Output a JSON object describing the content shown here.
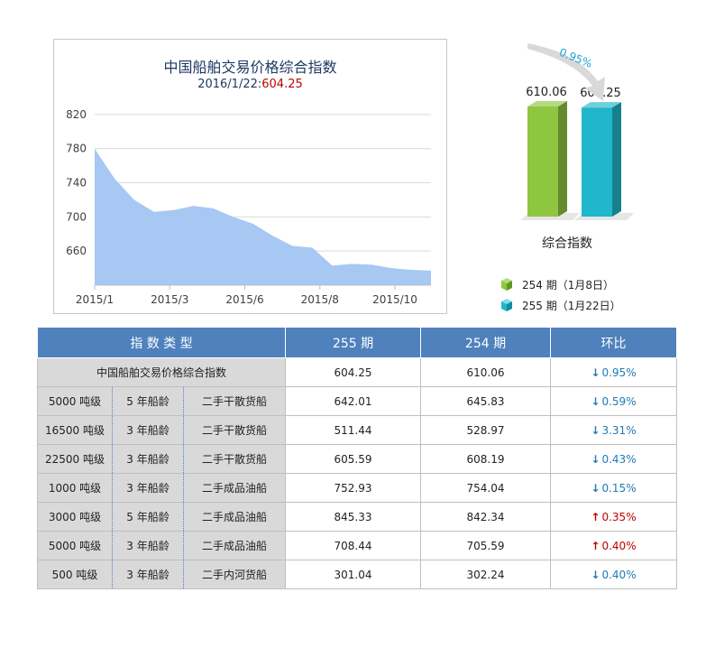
{
  "area_chart": {
    "title": "中国船舶交易价格综合指数",
    "subtitle_date": "2016/1/22:",
    "subtitle_value": "604.25",
    "fill_color": "#a6c8f2",
    "y_ticks": [
      "820",
      "780",
      "740",
      "700",
      "660"
    ],
    "x_ticks": [
      "2015/1",
      "2015/3",
      "2015/6",
      "2015/8",
      "2015/10"
    ]
  },
  "chart_data": [
    {
      "type": "area",
      "x_index": [
        0,
        1,
        2,
        3,
        4,
        5,
        6,
        7,
        8,
        9,
        10,
        11,
        12,
        13,
        14,
        15,
        16,
        17
      ],
      "values": [
        780,
        745,
        720,
        706,
        708,
        713,
        710,
        700,
        692,
        678,
        666,
        664,
        643,
        645,
        644,
        640,
        638,
        637
      ],
      "ylim": [
        620,
        840
      ],
      "grid": true
    },
    {
      "type": "bar",
      "categories": [
        "254 期（1月8日）",
        "255 期（1月22日）"
      ],
      "values": [
        610.06,
        604.25
      ],
      "value_labels": [
        "610.06",
        "604.25"
      ],
      "change_label": "0.95%",
      "xlabel": "综合指数",
      "colors": [
        "#8ec63f",
        "#1fb7c9"
      ]
    }
  ],
  "table": {
    "headers": [
      "指 数 类 型",
      "255 期",
      "254 期",
      "环比"
    ],
    "rows": [
      {
        "type": "中国船舶交易价格综合指数",
        "tonnage": "",
        "age": "",
        "kind": "",
        "p255": "604.25",
        "p254": "610.06",
        "dir": "down",
        "arrow": "↓",
        "change": "0.95%"
      },
      {
        "type": "",
        "tonnage": "5000 吨级",
        "age": "5 年船龄",
        "kind": "二手干散货船",
        "p255": "642.01",
        "p254": "645.83",
        "dir": "down",
        "arrow": "↓",
        "change": "0.59%"
      },
      {
        "type": "",
        "tonnage": "16500 吨级",
        "age": "3 年船龄",
        "kind": "二手干散货船",
        "p255": "511.44",
        "p254": "528.97",
        "dir": "down",
        "arrow": "↓",
        "change": "3.31%"
      },
      {
        "type": "",
        "tonnage": "22500 吨级",
        "age": "3 年船龄",
        "kind": "二手干散货船",
        "p255": "605.59",
        "p254": "608.19",
        "dir": "down",
        "arrow": "↓",
        "change": "0.43%"
      },
      {
        "type": "",
        "tonnage": "1000 吨级",
        "age": "3 年船龄",
        "kind": "二手成品油船",
        "p255": "752.93",
        "p254": "754.04",
        "dir": "down",
        "arrow": "↓",
        "change": "0.15%"
      },
      {
        "type": "",
        "tonnage": "3000 吨级",
        "age": "5 年船龄",
        "kind": "二手成品油船",
        "p255": "845.33",
        "p254": "842.34",
        "dir": "up",
        "arrow": "↑",
        "change": "0.35%"
      },
      {
        "type": "",
        "tonnage": "5000 吨级",
        "age": "3 年船龄",
        "kind": "二手成品油船",
        "p255": "708.44",
        "p254": "705.59",
        "dir": "up",
        "arrow": "↑",
        "change": "0.40%"
      },
      {
        "type": "",
        "tonnage": "500 吨级",
        "age": "3 年船龄",
        "kind": "二手内河货船",
        "p255": "301.04",
        "p254": "302.24",
        "dir": "down",
        "arrow": "↓",
        "change": "0.40%"
      }
    ]
  }
}
